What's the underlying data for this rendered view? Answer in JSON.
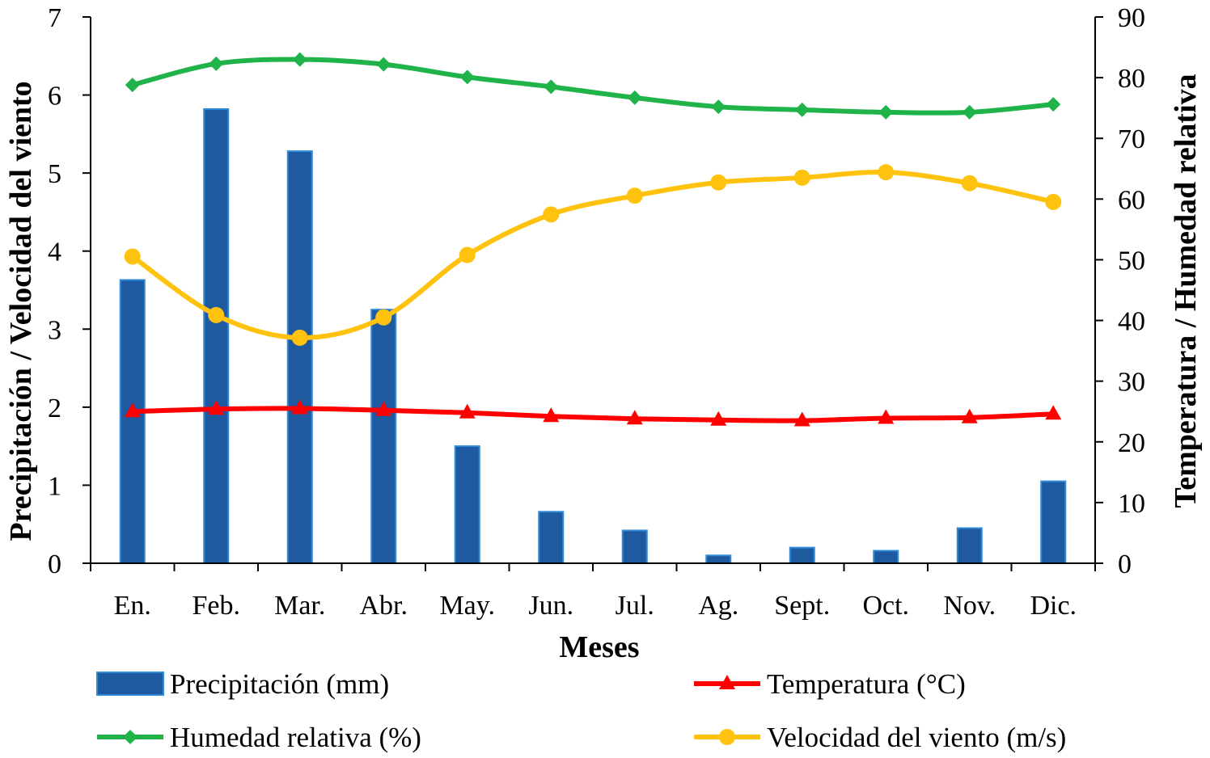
{
  "chart_data": {
    "type": "bar",
    "categories": [
      "En.",
      "Feb.",
      "Mar.",
      "Abr.",
      "May.",
      "Jun.",
      "Jul.",
      "Ag.",
      "Sept.",
      "Oct.",
      "Nov.",
      "Dic."
    ],
    "xlabel": "Meses",
    "ylabel": "Precipitación / Velocidad del viento",
    "y2label": "Temperatura / Humedad relativa",
    "ylim": [
      0,
      7
    ],
    "y2lim": [
      0,
      90
    ],
    "yticks": [
      "0",
      "1",
      "2",
      "3",
      "4",
      "5",
      "6",
      "7"
    ],
    "y2ticks": [
      "0",
      "10",
      "20",
      "30",
      "40",
      "50",
      "60",
      "70",
      "80",
      "90"
    ],
    "grid": false,
    "legend_position": "bottom",
    "series": [
      {
        "name": "Precipitación (mm)",
        "type": "bar",
        "axis": "left",
        "color": "#1f5aa0",
        "values": [
          3.63,
          5.82,
          5.28,
          3.25,
          1.5,
          0.66,
          0.42,
          0.1,
          0.2,
          0.16,
          0.45,
          1.05
        ]
      },
      {
        "name": "Temperatura (°C)",
        "type": "line",
        "marker": "triangle",
        "axis": "right",
        "color": "#ff0000",
        "values": [
          25.0,
          25.4,
          25.5,
          25.2,
          24.8,
          24.2,
          23.8,
          23.6,
          23.5,
          23.9,
          24.0,
          24.6
        ]
      },
      {
        "name": "Humedad relativa (%)",
        "type": "line",
        "marker": "diamond",
        "axis": "right",
        "color": "#1fb34a",
        "values": [
          78.8,
          82.3,
          83.0,
          82.2,
          80.1,
          78.5,
          76.7,
          75.2,
          74.7,
          74.3,
          74.3,
          75.6
        ]
      },
      {
        "name": "Velocidad del viento (m/s)",
        "type": "line",
        "marker": "circle",
        "axis": "left",
        "color": "#ffc20e",
        "values": [
          3.93,
          3.18,
          2.89,
          3.15,
          3.95,
          4.47,
          4.71,
          4.88,
          4.94,
          5.01,
          4.87,
          4.63
        ]
      }
    ]
  }
}
